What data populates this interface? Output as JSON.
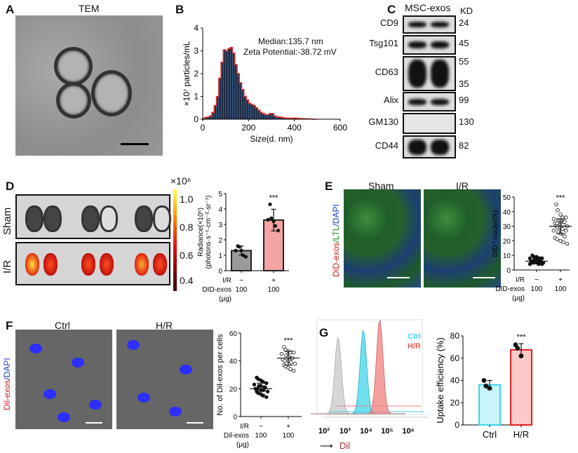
{
  "panels": {
    "A": {
      "label": "A",
      "title": "TEM"
    },
    "B": {
      "label": "B",
      "median": "Median:135.7 nm",
      "zeta": "Zeta Potential:-38.72 mV"
    },
    "C": {
      "label": "C",
      "header": "MSC-exos",
      "unit": "KD",
      "rows": [
        {
          "name": "CD9",
          "kd": [
            "24"
          ]
        },
        {
          "name": "Tsg101",
          "kd": [
            "45"
          ]
        },
        {
          "name": "CD63",
          "kd": [
            "55",
            "35"
          ]
        },
        {
          "name": "Alix",
          "kd": [
            "99"
          ]
        },
        {
          "name": "GM130",
          "kd": [
            "130"
          ]
        },
        {
          "name": "CD44",
          "kd": [
            "82"
          ]
        }
      ]
    },
    "D": {
      "label": "D",
      "rows": [
        "Sham",
        "I/R"
      ],
      "colorbar": {
        "exponent": "×10⁶",
        "ticks": [
          "1.0",
          "0.8",
          "0.6",
          "0.4"
        ]
      }
    },
    "E": {
      "label": "E",
      "cols": [
        "Sham",
        "I/R"
      ],
      "stain_red": "DiD-exos",
      "stain_green": "/LTL",
      "stain_blue": "/DAPI"
    },
    "F": {
      "label": "F",
      "cols": [
        "Ctrl",
        "H/R"
      ],
      "stain_red": "Dil-exos",
      "stain_blue": "/DAPI"
    },
    "G": {
      "label": "G",
      "xaxis_label": "Dil",
      "arrow": "⟶"
    }
  },
  "colors": {
    "ctrl_gray": "#9a9a9a",
    "ir_pink": "#f4a4a4",
    "ir_red": "#e02020",
    "cyan": "#40d4e8",
    "flow_gray": "#c8c8c8"
  },
  "chart_data": [
    {
      "id": "B",
      "type": "bar",
      "xlabel": "Size(d. nm)",
      "ylabel": "×10⁷ particles/mL",
      "xlim": [
        0,
        600
      ],
      "ylim": [
        0,
        4
      ],
      "xticks": [
        "0",
        "200",
        "400",
        "600"
      ],
      "yticks": [
        "0",
        "1",
        "2",
        "3",
        "4"
      ],
      "bin_width": 10,
      "values": [
        0.05,
        0.08,
        0.1,
        0.15,
        0.3,
        0.6,
        1.0,
        1.8,
        2.5,
        3.05,
        3.0,
        3.1,
        3.15,
        2.9,
        2.4,
        2.0,
        1.6,
        1.3,
        1.0,
        0.85,
        0.7,
        0.65,
        0.6,
        0.5,
        0.4,
        0.3,
        0.25,
        0.2,
        0.2,
        0.25,
        0.25,
        0.15,
        0.1,
        0.1,
        0.08,
        0.06,
        0.05,
        0.05,
        0.04,
        0.05,
        0.05,
        0.04,
        0.03,
        0.03,
        0.02,
        0.02,
        0.01,
        0.01,
        0,
        0
      ]
    },
    {
      "id": "D",
      "type": "bar",
      "ylabel": "Radiance(×10⁶)",
      "ylabel2": "(photons·s⁻¹·cm⁻²·sr⁻¹)",
      "ylim": [
        0,
        5
      ],
      "yticks": [
        "0",
        "1",
        "2",
        "3",
        "4",
        "5"
      ],
      "row_labels": [
        "I/R",
        "DID-exos",
        "(μg)"
      ],
      "categories": [
        [
          "−",
          "100"
        ],
        [
          "+",
          "100"
        ]
      ],
      "significance": "***",
      "series": [
        {
          "mean": 1.3,
          "sd": 0.3,
          "points": [
            1.6,
            1.55,
            1.3,
            1.0,
            0.9,
            1.3
          ]
        },
        {
          "mean": 3.28,
          "sd": 0.7,
          "points": [
            4.3,
            3.4,
            3.2,
            2.9,
            2.6,
            3.3
          ]
        }
      ]
    },
    {
      "id": "E",
      "type": "scatter",
      "ylabel": "DID⁺ nuclei(%)",
      "ylim": [
        0,
        50
      ],
      "yticks": [
        "0",
        "10",
        "20",
        "30",
        "40",
        "50"
      ],
      "row_labels": [
        "I/R",
        "DID-exos",
        "(μg)"
      ],
      "categories": [
        [
          "−",
          "100"
        ],
        [
          "+",
          "100"
        ]
      ],
      "significance": "***",
      "series": [
        {
          "mean": 6,
          "sd": 1.5,
          "points": [
            10,
            9,
            9,
            8,
            8,
            8,
            7,
            7,
            7,
            6,
            6,
            6,
            6,
            5,
            5,
            5,
            5,
            5,
            4,
            4,
            4,
            6,
            7,
            8
          ]
        },
        {
          "mean": 30,
          "sd": 5,
          "points": [
            45,
            41,
            38,
            36,
            36,
            35,
            34,
            34,
            33,
            33,
            32,
            32,
            31,
            31,
            30,
            30,
            29,
            29,
            28,
            27,
            27,
            26,
            25,
            24,
            23,
            22,
            21,
            20,
            19,
            18
          ]
        }
      ]
    },
    {
      "id": "F",
      "type": "scatter",
      "ylabel": "No. of Dil-exos per cells",
      "ylim": [
        0,
        60
      ],
      "yticks": [
        "0",
        "20",
        "40",
        "60"
      ],
      "row_labels": [
        "I/R",
        "Dil-exos",
        "(μg)"
      ],
      "categories": [
        [
          "−",
          "100"
        ],
        [
          "+",
          "100"
        ]
      ],
      "significance": "***",
      "series": [
        {
          "mean": 20,
          "sd": 4,
          "points": [
            28,
            27,
            26,
            25,
            24,
            23,
            22,
            22,
            21,
            21,
            20,
            20,
            19,
            19,
            18,
            18,
            17,
            16,
            15,
            14
          ]
        },
        {
          "mean": 42,
          "sd": 5,
          "points": [
            50,
            48,
            47,
            46,
            46,
            45,
            44,
            43,
            42,
            42,
            41,
            40,
            40,
            39,
            38,
            37,
            36,
            35,
            34,
            33
          ]
        }
      ]
    },
    {
      "id": "G-flow",
      "type": "area",
      "xlabel": "Dil",
      "xscale": "log",
      "xticks": [
        "10²",
        "10³",
        "10⁴",
        "10⁵",
        "10⁶"
      ],
      "legend": [
        "Ctrl",
        "H/R"
      ],
      "series": [
        {
          "mode": 630,
          "color": "#c8c8c8"
        },
        {
          "name": "Ctrl",
          "mode": 10000,
          "color": "#40d4e8"
        },
        {
          "name": "H/R",
          "mode": 60000,
          "color": "#f08080"
        }
      ]
    },
    {
      "id": "G",
      "type": "bar",
      "ylabel": "Uptake efficiency (%)",
      "ylim": [
        0,
        80
      ],
      "yticks": [
        "0",
        "20",
        "40",
        "60",
        "80"
      ],
      "categories": [
        "Ctrl",
        "H/R"
      ],
      "significance": "***",
      "series": [
        {
          "mean": 36,
          "sd": 4,
          "points": [
            40,
            35,
            33
          ]
        },
        {
          "mean": 67.5,
          "sd": 5.5,
          "points": [
            72,
            69,
            62
          ]
        }
      ]
    }
  ]
}
